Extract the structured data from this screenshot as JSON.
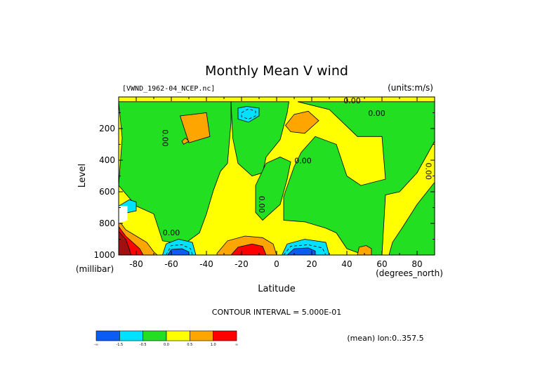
{
  "colors": {
    "blue": "#0b5cf3",
    "cyan": "#00e1ff",
    "green": "#22df22",
    "yellow": "#ffff00",
    "orange": "#ffa500",
    "red": "#ff0000",
    "darkred": "#a01010"
  },
  "chart_data": {
    "type": "heatmap",
    "title": "Monthly Mean V wind",
    "file_label": "[VWND_1962-04_NCEP.nc]",
    "units_label": "(units:m/s)",
    "xlabel": "Latitude",
    "x_unit_label": "(degrees_north)",
    "ylabel": "Level",
    "y_unit_label": "(millibar)",
    "xlim": [
      -90,
      90
    ],
    "ylim": [
      1000,
      0
    ],
    "x_ticks": [
      {
        "value": -80,
        "label": "-80"
      },
      {
        "value": -60,
        "label": "-60"
      },
      {
        "value": -40,
        "label": "-40"
      },
      {
        "value": -20,
        "label": "-20"
      },
      {
        "value": 0,
        "label": "0"
      },
      {
        "value": 20,
        "label": "20"
      },
      {
        "value": 40,
        "label": "40"
      },
      {
        "value": 60,
        "label": "60"
      },
      {
        "value": 80,
        "label": "80"
      }
    ],
    "y_ticks": [
      {
        "value": 200,
        "label": "200"
      },
      {
        "value": 400,
        "label": "400"
      },
      {
        "value": 600,
        "label": "600"
      },
      {
        "value": 800,
        "label": "800"
      },
      {
        "value": 1000,
        "label": "1000"
      }
    ],
    "contour_interval_text": "CONTOUR INTERVAL = 5.000E-01",
    "mean_label": "(mean) lon:0..357.5",
    "contour_labels": [
      {
        "text": "0.00",
        "x": 43,
        "y": 40,
        "rotate": 0
      },
      {
        "text": "0.00",
        "x": 57,
        "y": 120,
        "rotate": 0
      },
      {
        "text": "0.00",
        "x": -65,
        "y": 260,
        "rotate": 90
      },
      {
        "text": "0.00",
        "x": 15,
        "y": 420,
        "rotate": 0
      },
      {
        "text": "0.00",
        "x": 85,
        "y": 470,
        "rotate": 90
      },
      {
        "text": "0.00",
        "x": -10,
        "y": 680,
        "rotate": 90
      },
      {
        "text": "0.00",
        "x": -60,
        "y": 875,
        "rotate": 0
      }
    ],
    "colorbar": {
      "colors": [
        "#0b5cf3",
        "#00e1ff",
        "#22df22",
        "#ffff00",
        "#ffa500",
        "#ff0000"
      ],
      "labels": [
        "-∞",
        "-1.5",
        "-0.5",
        "0.0",
        "0.5",
        "1.0",
        "∞"
      ]
    },
    "regions": [
      {
        "color": "#22df22",
        "points": [
          [
            -90,
            30
          ],
          [
            -88,
            260
          ],
          [
            -90,
            560
          ],
          [
            -80,
            690
          ],
          [
            -70,
            740
          ],
          [
            -65,
            910
          ],
          [
            -60,
            920
          ],
          [
            -52,
            925
          ],
          [
            -44,
            860
          ],
          [
            -40,
            740
          ],
          [
            -36,
            590
          ],
          [
            -32,
            470
          ],
          [
            -28,
            420
          ],
          [
            -26,
            160
          ],
          [
            -26,
            30
          ]
        ]
      },
      {
        "color": "#22df22",
        "points": [
          [
            -26,
            30
          ],
          [
            -25,
            260
          ],
          [
            -22,
            420
          ],
          [
            -14,
            500
          ],
          [
            -8,
            480
          ],
          [
            -6,
            380
          ],
          [
            2,
            270
          ],
          [
            6,
            100
          ],
          [
            7,
            30
          ]
        ]
      },
      {
        "color": "#22df22",
        "points": [
          [
            -12,
            560
          ],
          [
            -6,
            420
          ],
          [
            2,
            380
          ],
          [
            8,
            410
          ],
          [
            6,
            520
          ],
          [
            2,
            680
          ],
          [
            -8,
            780
          ],
          [
            -12,
            730
          ]
        ]
      },
      {
        "color": "#22df22",
        "points": [
          [
            12,
            30
          ],
          [
            30,
            80
          ],
          [
            46,
            250
          ],
          [
            60,
            250
          ],
          [
            62,
            520
          ],
          [
            48,
            560
          ],
          [
            40,
            500
          ],
          [
            34,
            300
          ],
          [
            22,
            250
          ],
          [
            14,
            350
          ],
          [
            10,
            440
          ],
          [
            4,
            630
          ],
          [
            4,
            780
          ],
          [
            16,
            790
          ],
          [
            28,
            830
          ],
          [
            34,
            860
          ],
          [
            40,
            960
          ],
          [
            50,
            1000
          ],
          [
            60,
            1000
          ],
          [
            62,
            620
          ],
          [
            70,
            600
          ],
          [
            80,
            480
          ],
          [
            86,
            360
          ],
          [
            90,
            280
          ],
          [
            90,
            30
          ]
        ]
      },
      {
        "color": "#22df22",
        "points": [
          [
            90,
            540
          ],
          [
            80,
            680
          ],
          [
            72,
            820
          ],
          [
            66,
            920
          ],
          [
            64,
            1000
          ],
          [
            90,
            1000
          ]
        ]
      },
      {
        "color": "#ffa500",
        "points": [
          [
            -55,
            120
          ],
          [
            -40,
            100
          ],
          [
            -38,
            250
          ],
          [
            -50,
            290
          ]
        ]
      },
      {
        "color": "#ffa500",
        "points": [
          [
            -54,
            280
          ],
          [
            -52,
            260
          ],
          [
            -50,
            280
          ],
          [
            -53,
            300
          ]
        ]
      },
      {
        "color": "#ffa500",
        "points": [
          [
            5,
            180
          ],
          [
            10,
            110
          ],
          [
            18,
            90
          ],
          [
            24,
            150
          ],
          [
            16,
            230
          ],
          [
            8,
            220
          ]
        ]
      },
      {
        "color": "#00e1ff",
        "points": [
          [
            -22,
            70
          ],
          [
            -17,
            60
          ],
          [
            -10,
            70
          ],
          [
            -10,
            120
          ],
          [
            -16,
            160
          ],
          [
            -22,
            140
          ]
        ]
      },
      {
        "color": "#ffa500",
        "points": [
          [
            -34,
            990
          ],
          [
            -28,
            910
          ],
          [
            -18,
            880
          ],
          [
            -8,
            890
          ],
          [
            -2,
            930
          ],
          [
            0,
            1000
          ],
          [
            -34,
            1000
          ]
        ]
      },
      {
        "color": "#ff0000",
        "points": [
          [
            -26,
            1000
          ],
          [
            -22,
            950
          ],
          [
            -14,
            930
          ],
          [
            -8,
            945
          ],
          [
            -6,
            1000
          ]
        ]
      },
      {
        "color": "#ffa500",
        "points": [
          [
            46,
            1000
          ],
          [
            47,
            950
          ],
          [
            51,
            940
          ],
          [
            54,
            960
          ],
          [
            54,
            1000
          ]
        ]
      },
      {
        "color": "#00e1ff",
        "points": [
          [
            -65,
            1000
          ],
          [
            -63,
            930
          ],
          [
            -56,
            900
          ],
          [
            -48,
            920
          ],
          [
            -46,
            1000
          ]
        ]
      },
      {
        "color": "#0b5cf3",
        "points": [
          [
            -62,
            1000
          ],
          [
            -60,
            965
          ],
          [
            -54,
            960
          ],
          [
            -50,
            980
          ],
          [
            -50,
            1000
          ]
        ]
      },
      {
        "color": "#00e1ff",
        "points": [
          [
            3,
            1000
          ],
          [
            6,
            930
          ],
          [
            16,
            900
          ],
          [
            28,
            920
          ],
          [
            30,
            1000
          ]
        ]
      },
      {
        "color": "#0b5cf3",
        "points": [
          [
            6,
            1000
          ],
          [
            10,
            960
          ],
          [
            18,
            955
          ],
          [
            22,
            975
          ],
          [
            22,
            1000
          ]
        ]
      },
      {
        "color": "#00e1ff",
        "points": [
          [
            -90,
            690
          ],
          [
            -84,
            650
          ],
          [
            -80,
            665
          ],
          [
            -80,
            720
          ],
          [
            -88,
            740
          ]
        ]
      },
      {
        "color": "#ffa500",
        "points": [
          [
            -90,
            780
          ],
          [
            -86,
            840
          ],
          [
            -80,
            880
          ],
          [
            -74,
            920
          ],
          [
            -70,
            980
          ],
          [
            -68,
            1000
          ],
          [
            -90,
            1000
          ]
        ]
      },
      {
        "color": "#ff0000",
        "points": [
          [
            -90,
            820
          ],
          [
            -86,
            880
          ],
          [
            -82,
            920
          ],
          [
            -78,
            960
          ],
          [
            -76,
            1000
          ],
          [
            -90,
            1000
          ]
        ]
      },
      {
        "color": "#a01010",
        "points": [
          [
            -90,
            850
          ],
          [
            -86,
            900
          ],
          [
            -84,
            960
          ],
          [
            -83,
            1000
          ],
          [
            -90,
            1000
          ]
        ]
      }
    ],
    "dashed_lines": [
      [
        [
          -63,
          1000
        ],
        [
          -60,
          940
        ],
        [
          -54,
          935
        ],
        [
          -49,
          960
        ],
        [
          -48,
          1000
        ]
      ],
      [
        [
          4,
          1000
        ],
        [
          8,
          945
        ],
        [
          18,
          935
        ],
        [
          26,
          955
        ],
        [
          28,
          1000
        ]
      ],
      [
        [
          -20,
          100
        ],
        [
          -16,
          75
        ],
        [
          -12,
          90
        ],
        [
          -12,
          120
        ],
        [
          -16,
          140
        ],
        [
          -20,
          125
        ],
        [
          -20,
          100
        ]
      ]
    ],
    "white_patch": [
      [
        -90,
        690
      ],
      [
        -85,
        690
      ],
      [
        -85,
        780
      ],
      [
        -90,
        800
      ]
    ]
  }
}
